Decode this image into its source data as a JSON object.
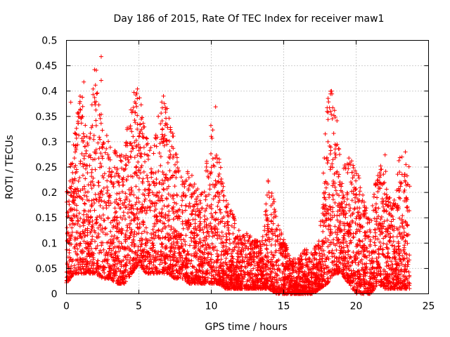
{
  "chart_data": {
    "type": "scatter",
    "title": "Day 186 of 2015, Rate Of TEC Index for receiver maw1",
    "xlabel": "GPS time / hours",
    "ylabel": "ROTI / TECUs",
    "xlim": [
      0,
      25
    ],
    "ylim": [
      0,
      0.5
    ],
    "xticks": [
      0,
      5,
      10,
      15,
      20,
      25
    ],
    "xtick_labels": [
      "0",
      "5",
      "10",
      "15",
      "20",
      "25"
    ],
    "yticks": [
      0,
      0.05,
      0.1,
      0.15,
      0.2,
      0.25,
      0.3,
      0.35,
      0.4,
      0.45,
      0.5
    ],
    "ytick_labels": [
      "0",
      "0.05",
      "0.1",
      "0.15",
      "0.2",
      "0.25",
      "0.3",
      "0.35",
      "0.4",
      "0.45",
      "0.5"
    ],
    "grid": true,
    "marker": "+",
    "color": "#ff0000",
    "data_range_hours": [
      0,
      23.7
    ],
    "series": [
      {
        "name": "ROTI",
        "envelope_hours": [
          0,
          0.5,
          1,
          1.5,
          2,
          2.5,
          3,
          3.5,
          4,
          4.5,
          5,
          5.5,
          6,
          6.5,
          7,
          7.5,
          8,
          8.5,
          9,
          9.5,
          10,
          10.5,
          11,
          11.5,
          12,
          12.5,
          13,
          13.5,
          14,
          14.5,
          15,
          15.5,
          16,
          16.5,
          17,
          17.5,
          18,
          18.5,
          19,
          19.5,
          20,
          20.5,
          21,
          21.5,
          22,
          22.5,
          23,
          23.5
        ],
        "envelope_max": [
          0.2,
          0.3,
          0.41,
          0.3,
          0.47,
          0.33,
          0.3,
          0.28,
          0.28,
          0.4,
          0.4,
          0.33,
          0.28,
          0.39,
          0.38,
          0.29,
          0.23,
          0.25,
          0.21,
          0.2,
          0.37,
          0.28,
          0.19,
          0.16,
          0.12,
          0.12,
          0.11,
          0.1,
          0.25,
          0.15,
          0.11,
          0.07,
          0.07,
          0.09,
          0.08,
          0.12,
          0.4,
          0.4,
          0.25,
          0.27,
          0.25,
          0.2,
          0.14,
          0.27,
          0.25,
          0.17,
          0.28,
          0.26
        ],
        "envelope_min": [
          0.02,
          0.04,
          0.04,
          0.04,
          0.04,
          0.03,
          0.03,
          0.02,
          0.02,
          0.04,
          0.06,
          0.04,
          0.04,
          0.04,
          0.04,
          0.03,
          0.03,
          0.02,
          0.02,
          0.02,
          0.02,
          0.02,
          0.01,
          0.01,
          0.01,
          0.01,
          0.01,
          0.01,
          0.01,
          0.0,
          0.0,
          0.0,
          0.0,
          0.0,
          0.0,
          0.01,
          0.02,
          0.04,
          0.04,
          0.02,
          0.0,
          0.0,
          0.0,
          0.02,
          0.01,
          0.01,
          0.01,
          0.01
        ]
      }
    ],
    "notable_points": [
      {
        "x": 2.4,
        "y": 0.468
      },
      {
        "x": 2.4,
        "y": 0.421
      },
      {
        "x": 1.2,
        "y": 0.418
      },
      {
        "x": 4.9,
        "y": 0.404
      },
      {
        "x": 18.3,
        "y": 0.4
      },
      {
        "x": 6.7,
        "y": 0.39
      },
      {
        "x": 0.3,
        "y": 0.378
      },
      {
        "x": 10.3,
        "y": 0.369
      },
      {
        "x": 18.0,
        "y": 0.367
      },
      {
        "x": 22.0,
        "y": 0.274
      },
      {
        "x": 23.4,
        "y": 0.28
      }
    ]
  }
}
